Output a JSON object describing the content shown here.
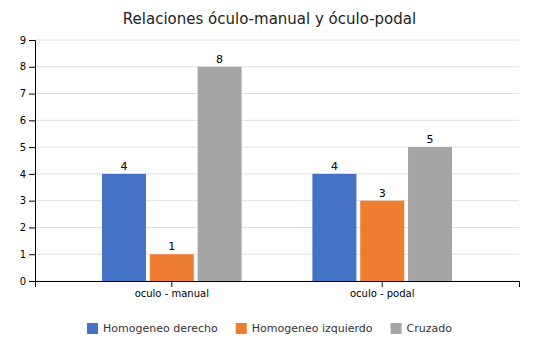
{
  "chart_data": {
    "type": "bar",
    "title": "Relaciones óculo-manual y óculo-podal",
    "categories": [
      "oculo - manual",
      "oculo - podal"
    ],
    "series": [
      {
        "name": "Homogeneo derecho",
        "color": "#4472C4",
        "values": [
          4,
          4
        ]
      },
      {
        "name": "Homogeneo izquierdo",
        "color": "#ED7D31",
        "values": [
          1,
          3
        ]
      },
      {
        "name": "Cruzado",
        "color": "#A5A5A5",
        "values": [
          8,
          5
        ]
      }
    ],
    "ylim": [
      0,
      9
    ],
    "yticks": [
      0,
      1,
      2,
      3,
      4,
      5,
      6,
      7,
      8,
      9
    ],
    "grid": true,
    "legend": "bottom",
    "data_labels": true
  }
}
